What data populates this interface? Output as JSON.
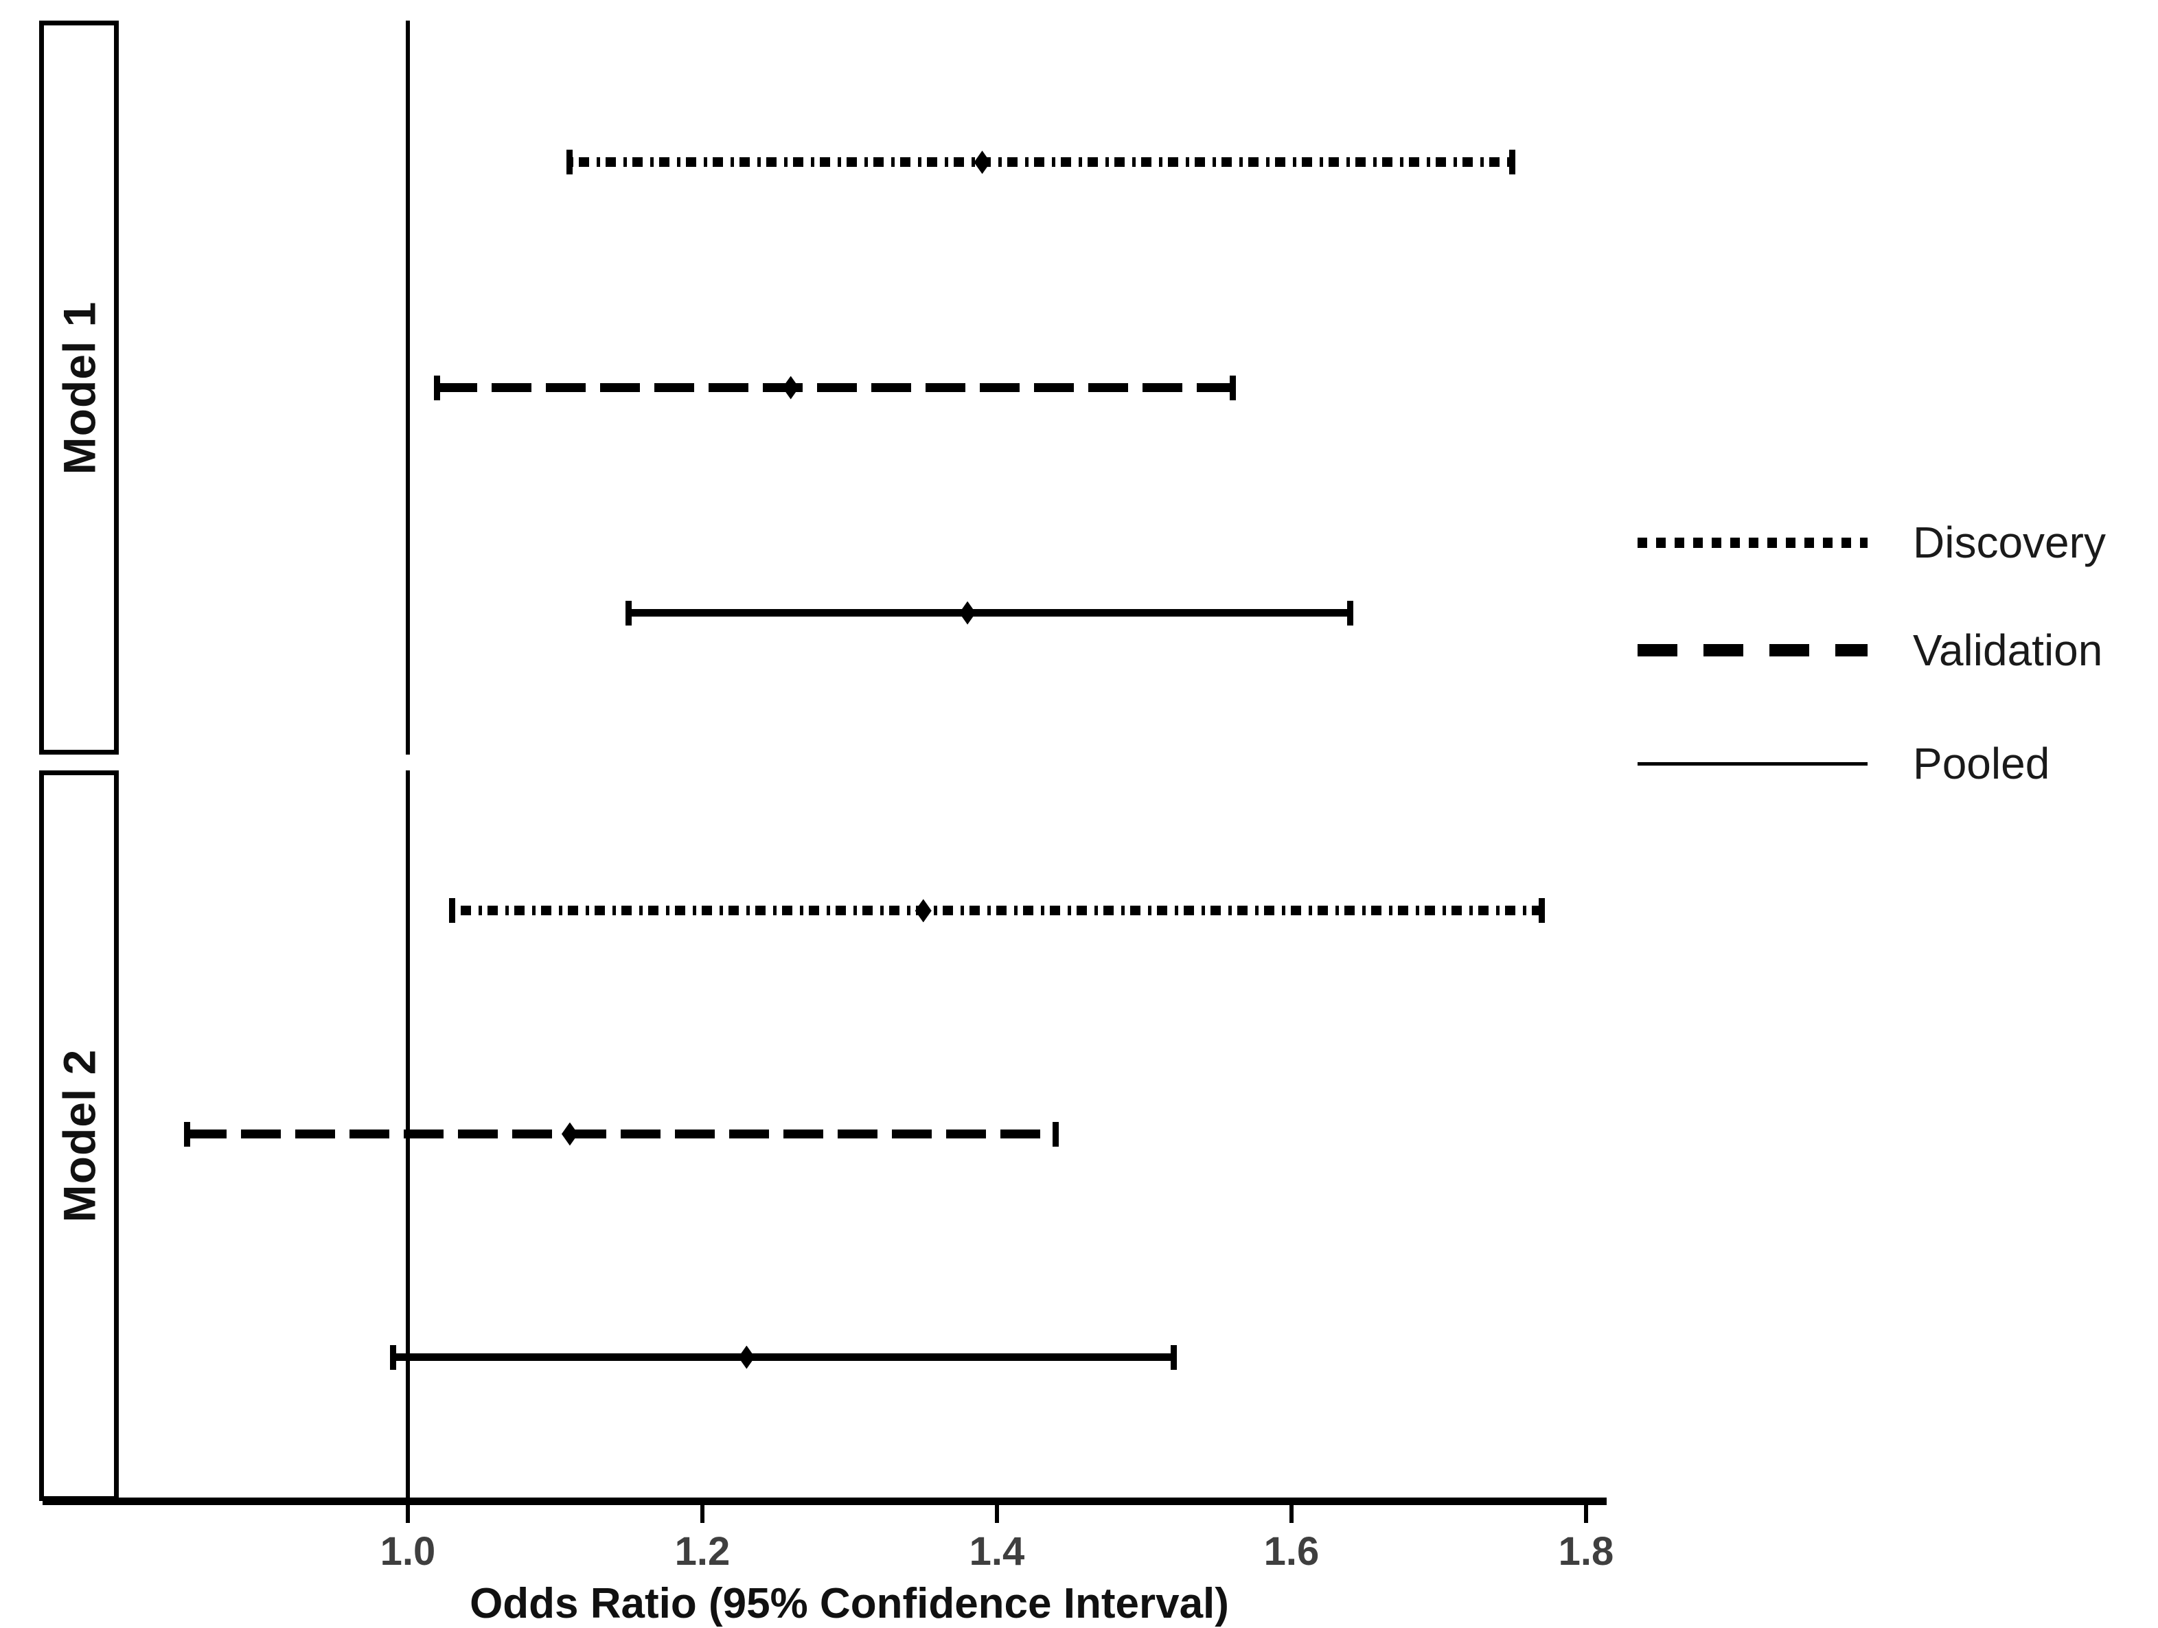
{
  "chart_data": {
    "type": "forest",
    "title": "",
    "xlabel": "Odds Ratio (95% Confidence Interval)",
    "x_tick_labels": [
      "1.0",
      "1.2",
      "1.4",
      "1.6",
      "1.8"
    ],
    "x_ticks": [
      1.0,
      1.2,
      1.4,
      1.6,
      1.8
    ],
    "xlim": [
      0.8,
      1.82
    ],
    "reference_line": 1.0,
    "grid": false,
    "legend_position": "right",
    "groups": [
      {
        "group": "Model 1",
        "series": [
          {
            "name": "Discovery",
            "line_style": "dotted",
            "odds_ratio": 1.39,
            "ci_lower": 1.11,
            "ci_upper": 1.75
          },
          {
            "name": "Validation",
            "line_style": "dashed",
            "odds_ratio": 1.26,
            "ci_lower": 1.02,
            "ci_upper": 1.56
          },
          {
            "name": "Pooled",
            "line_style": "solid",
            "odds_ratio": 1.38,
            "ci_lower": 1.15,
            "ci_upper": 1.64
          }
        ]
      },
      {
        "group": "Model 2",
        "series": [
          {
            "name": "Discovery",
            "line_style": "dotted",
            "odds_ratio": 1.35,
            "ci_lower": 1.03,
            "ci_upper": 1.77
          },
          {
            "name": "Validation",
            "line_style": "dashed",
            "odds_ratio": 1.11,
            "ci_lower": 0.85,
            "ci_upper": 1.44
          },
          {
            "name": "Pooled",
            "line_style": "solid",
            "odds_ratio": 1.23,
            "ci_lower": 0.99,
            "ci_upper": 1.52
          }
        ]
      }
    ],
    "legend": [
      {
        "label": "Discovery",
        "line_style": "dotted"
      },
      {
        "label": "Validation",
        "line_style": "dashed"
      },
      {
        "label": "Pooled",
        "line_style": "solid"
      }
    ]
  },
  "colors": {
    "line": "#000000",
    "tick_label": "#3f3f3f",
    "axis_label": "#111111",
    "legend_text": "#1a1a1a",
    "facet_label": "#111111",
    "background": "#ffffff"
  }
}
